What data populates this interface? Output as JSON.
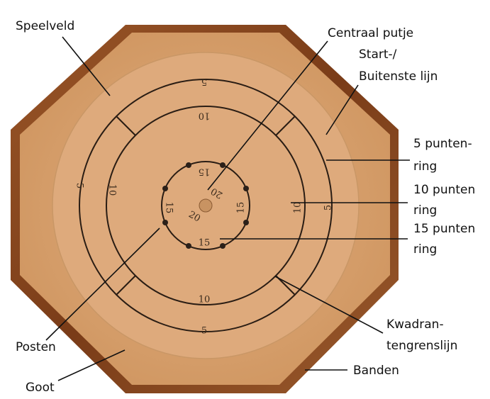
{
  "labels": {
    "speelveld": "Speelveld",
    "centraal_putje": "Centraal putje",
    "start_lijn": [
      "Start-/",
      "Buitenste lijn"
    ],
    "ring5": [
      "5 punten-",
      "ring"
    ],
    "ring10": [
      "10 punten",
      "ring"
    ],
    "ring15": [
      "15 punten",
      "ring"
    ],
    "kwadrant": [
      "Kwadran-",
      "tengrenslijn"
    ],
    "posten": "Posten",
    "goot": "Goot",
    "banden": "Banden"
  },
  "board": {
    "numbers": [
      "5",
      "10",
      "15",
      "20"
    ]
  }
}
